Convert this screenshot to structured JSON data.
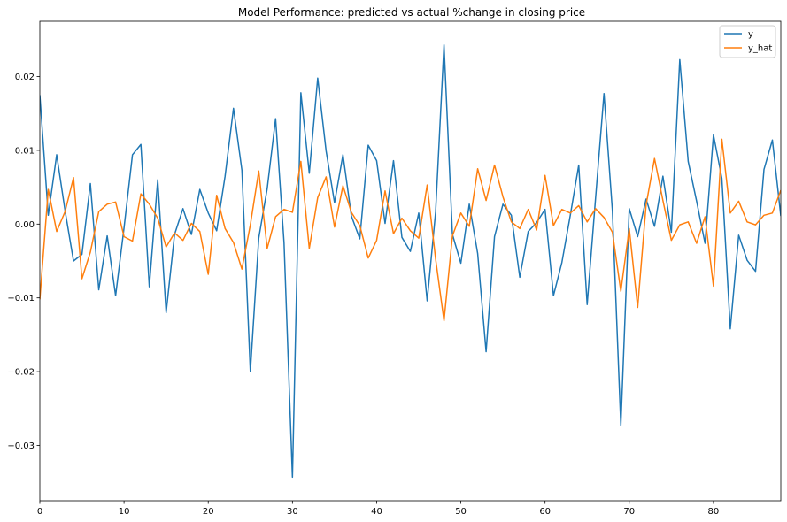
{
  "chart_data": {
    "type": "line",
    "title": "Model Performance: predicted vs actual %change in closing price",
    "xlabel": "",
    "ylabel": "",
    "xlim": [
      0,
      88
    ],
    "ylim": [
      -0.0375,
      0.0275
    ],
    "xticks": [
      0,
      10,
      20,
      30,
      40,
      50,
      60,
      70,
      80
    ],
    "yticks": [
      -0.03,
      -0.02,
      -0.01,
      0.0,
      0.01,
      0.02
    ],
    "ytick_labels": [
      "−0.03",
      "−0.02",
      "−0.01",
      "0.00",
      "0.01",
      "0.02"
    ],
    "grid": false,
    "legend_position": "top-right",
    "series": [
      {
        "name": "y",
        "color": "#1f77b4",
        "x": [
          0,
          1,
          2,
          3,
          4,
          5,
          6,
          7,
          8,
          9,
          10,
          11,
          12,
          13,
          14,
          15,
          16,
          17,
          18,
          19,
          20,
          21,
          22,
          23,
          24,
          25,
          26,
          27,
          28,
          29,
          30,
          31,
          32,
          33,
          34,
          35,
          36,
          37,
          38,
          39,
          40,
          41,
          42,
          43,
          44,
          45,
          46,
          47,
          48,
          49,
          50,
          51,
          52,
          53,
          54,
          55,
          56,
          57,
          58,
          59,
          60,
          61,
          62,
          63,
          64,
          65,
          66,
          67,
          68,
          69,
          70,
          71,
          72,
          73,
          74,
          75,
          76,
          77,
          78,
          79,
          80,
          81,
          82,
          83,
          84,
          85,
          86,
          87,
          88
        ],
        "values": [
          0.0175,
          0.0012,
          0.0094,
          0.0018,
          -0.005,
          -0.0041,
          0.0055,
          -0.0089,
          -0.0016,
          -0.0097,
          -0.0005,
          0.0094,
          0.0108,
          -0.0085,
          0.006,
          -0.012,
          -0.0014,
          0.0021,
          -0.0014,
          0.0047,
          0.0015,
          -0.0009,
          0.0065,
          0.0157,
          0.0073,
          -0.02,
          -0.0019,
          0.0048,
          0.0143,
          -0.0025,
          -0.0343,
          0.0178,
          0.0069,
          0.0198,
          0.0099,
          0.0029,
          0.0094,
          0.0011,
          -0.002,
          0.0107,
          0.0086,
          0.0001,
          0.0086,
          -0.0018,
          -0.0037,
          0.0015,
          -0.0104,
          0.0016,
          0.0243,
          -0.0014,
          -0.0053,
          0.0027,
          -0.004,
          -0.0173,
          -0.0017,
          0.0027,
          0.0012,
          -0.0072,
          -0.001,
          0.0002,
          0.002,
          -0.0097,
          -0.0052,
          0.0012,
          0.008,
          -0.0109,
          0.0035,
          0.0177,
          0.0018,
          -0.0273,
          0.0021,
          -0.0017,
          0.0034,
          -0.0003,
          0.0065,
          -0.0011,
          0.0223,
          0.0085,
          0.0031,
          -0.0026,
          0.0121,
          0.0062,
          -0.0142,
          -0.0015,
          -0.0049,
          -0.0064,
          0.0074,
          0.0114,
          0.0011
        ]
      },
      {
        "name": "y_hat",
        "color": "#ff7f0e",
        "x": [
          0,
          1,
          2,
          3,
          4,
          5,
          6,
          7,
          8,
          9,
          10,
          11,
          12,
          13,
          14,
          15,
          16,
          17,
          18,
          19,
          20,
          21,
          22,
          23,
          24,
          25,
          26,
          27,
          28,
          29,
          30,
          31,
          32,
          33,
          34,
          35,
          36,
          37,
          38,
          39,
          40,
          41,
          42,
          43,
          44,
          45,
          46,
          47,
          48,
          49,
          50,
          51,
          52,
          53,
          54,
          55,
          56,
          57,
          58,
          59,
          60,
          61,
          62,
          63,
          64,
          65,
          66,
          67,
          68,
          69,
          70,
          71,
          72,
          73,
          74,
          75,
          76,
          77,
          78,
          79,
          80,
          81,
          82,
          83,
          84,
          85,
          86,
          87,
          88
        ],
        "values": [
          -0.0102,
          0.0047,
          -0.001,
          0.0017,
          0.0063,
          -0.0074,
          -0.0038,
          0.0017,
          0.0027,
          0.003,
          -0.0017,
          -0.0023,
          0.0041,
          0.0027,
          0.0008,
          -0.0031,
          -0.0012,
          -0.0022,
          0.0001,
          -0.001,
          -0.0068,
          0.0039,
          -0.0006,
          -0.0025,
          -0.0061,
          -0.0001,
          0.0072,
          -0.0033,
          0.001,
          0.002,
          0.0016,
          0.0085,
          -0.0033,
          0.0036,
          0.0064,
          -0.0004,
          0.0052,
          0.0016,
          -0.0002,
          -0.0046,
          -0.0022,
          0.0045,
          -0.0013,
          0.0008,
          -0.0009,
          -0.0019,
          0.0053,
          -0.0047,
          -0.0131,
          -0.0016,
          0.0015,
          -0.0003,
          0.0075,
          0.0032,
          0.008,
          0.0037,
          0.0003,
          -0.0006,
          0.002,
          -0.0008,
          0.0066,
          -0.0002,
          0.002,
          0.0015,
          0.0025,
          0.0003,
          0.0021,
          0.0009,
          -0.0011,
          -0.0091,
          -0.0006,
          -0.0113,
          0.0026,
          0.0089,
          0.0032,
          -0.0022,
          -0.0001,
          0.0003,
          -0.0026,
          0.001,
          -0.0084,
          0.0115,
          0.0015,
          0.0031,
          0.0003,
          -0.0001,
          0.0012,
          0.0015,
          0.0046
        ]
      }
    ]
  }
}
